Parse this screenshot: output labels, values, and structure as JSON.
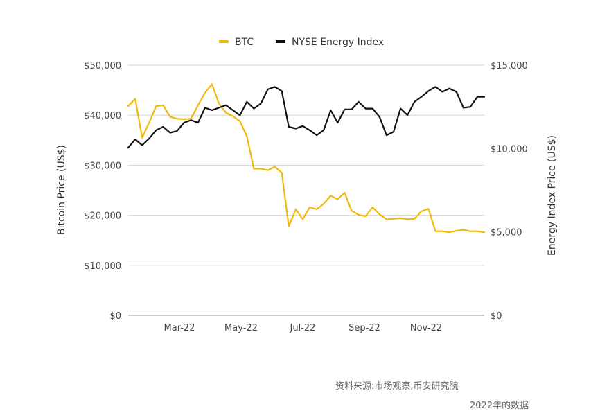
{
  "chart_data": {
    "type": "line",
    "title": "",
    "legend": {
      "position": "top-center"
    },
    "grid": true,
    "colors": {
      "BTC": "#f0b90b",
      "NYSE Energy Index": "#111111"
    },
    "x_tick_labels": [
      "Mar-22",
      "May-22",
      "Jul-22",
      "Sep-22",
      "Nov-22"
    ],
    "y_left": {
      "label": "Bitcoin Price (US$)",
      "range": [
        0,
        50000
      ],
      "ticks": [
        "$0",
        "$10,000",
        "$20,000",
        "$30,000",
        "$40,000",
        "$50,000"
      ]
    },
    "y_right": {
      "label": "Energy Index Price (US$)",
      "range": [
        0,
        15000
      ],
      "ticks": [
        "$0",
        "$5,000",
        "$10,000",
        "$15,000"
      ]
    },
    "series": [
      {
        "name": "BTC",
        "axis": "left",
        "values": [
          41800,
          43300,
          35500,
          38500,
          41800,
          42000,
          39700,
          39300,
          39200,
          39300,
          42000,
          44500,
          46200,
          42300,
          40500,
          39800,
          38800,
          35800,
          29300,
          29300,
          29000,
          29700,
          28500,
          17800,
          21200,
          19200,
          21600,
          21200,
          22300,
          23900,
          23200,
          24500,
          20900,
          20100,
          19800,
          21600,
          20200,
          19200,
          19300,
          19400,
          19200,
          19300,
          20800,
          21300,
          16800,
          16800,
          16600,
          16900,
          17100,
          16800,
          16800,
          16600
        ]
      },
      {
        "name": "NYSE Energy Index",
        "axis": "right",
        "values": [
          10050,
          10550,
          10200,
          10600,
          11100,
          11300,
          10950,
          11050,
          11550,
          11700,
          11550,
          12450,
          12300,
          12450,
          12600,
          12300,
          12000,
          12800,
          12400,
          12700,
          13550,
          13700,
          13450,
          11300,
          11200,
          11350,
          11100,
          10800,
          11100,
          12300,
          11550,
          12350,
          12350,
          12800,
          12400,
          12400,
          11900,
          10800,
          11000,
          12400,
          12000,
          12800,
          13100,
          13450,
          13700,
          13400,
          13600,
          13400,
          12450,
          12500,
          13100,
          13100
        ]
      }
    ]
  },
  "notes": {
    "source": "资料来源:市场观察,币安研究院",
    "year": "2022年的数据"
  }
}
